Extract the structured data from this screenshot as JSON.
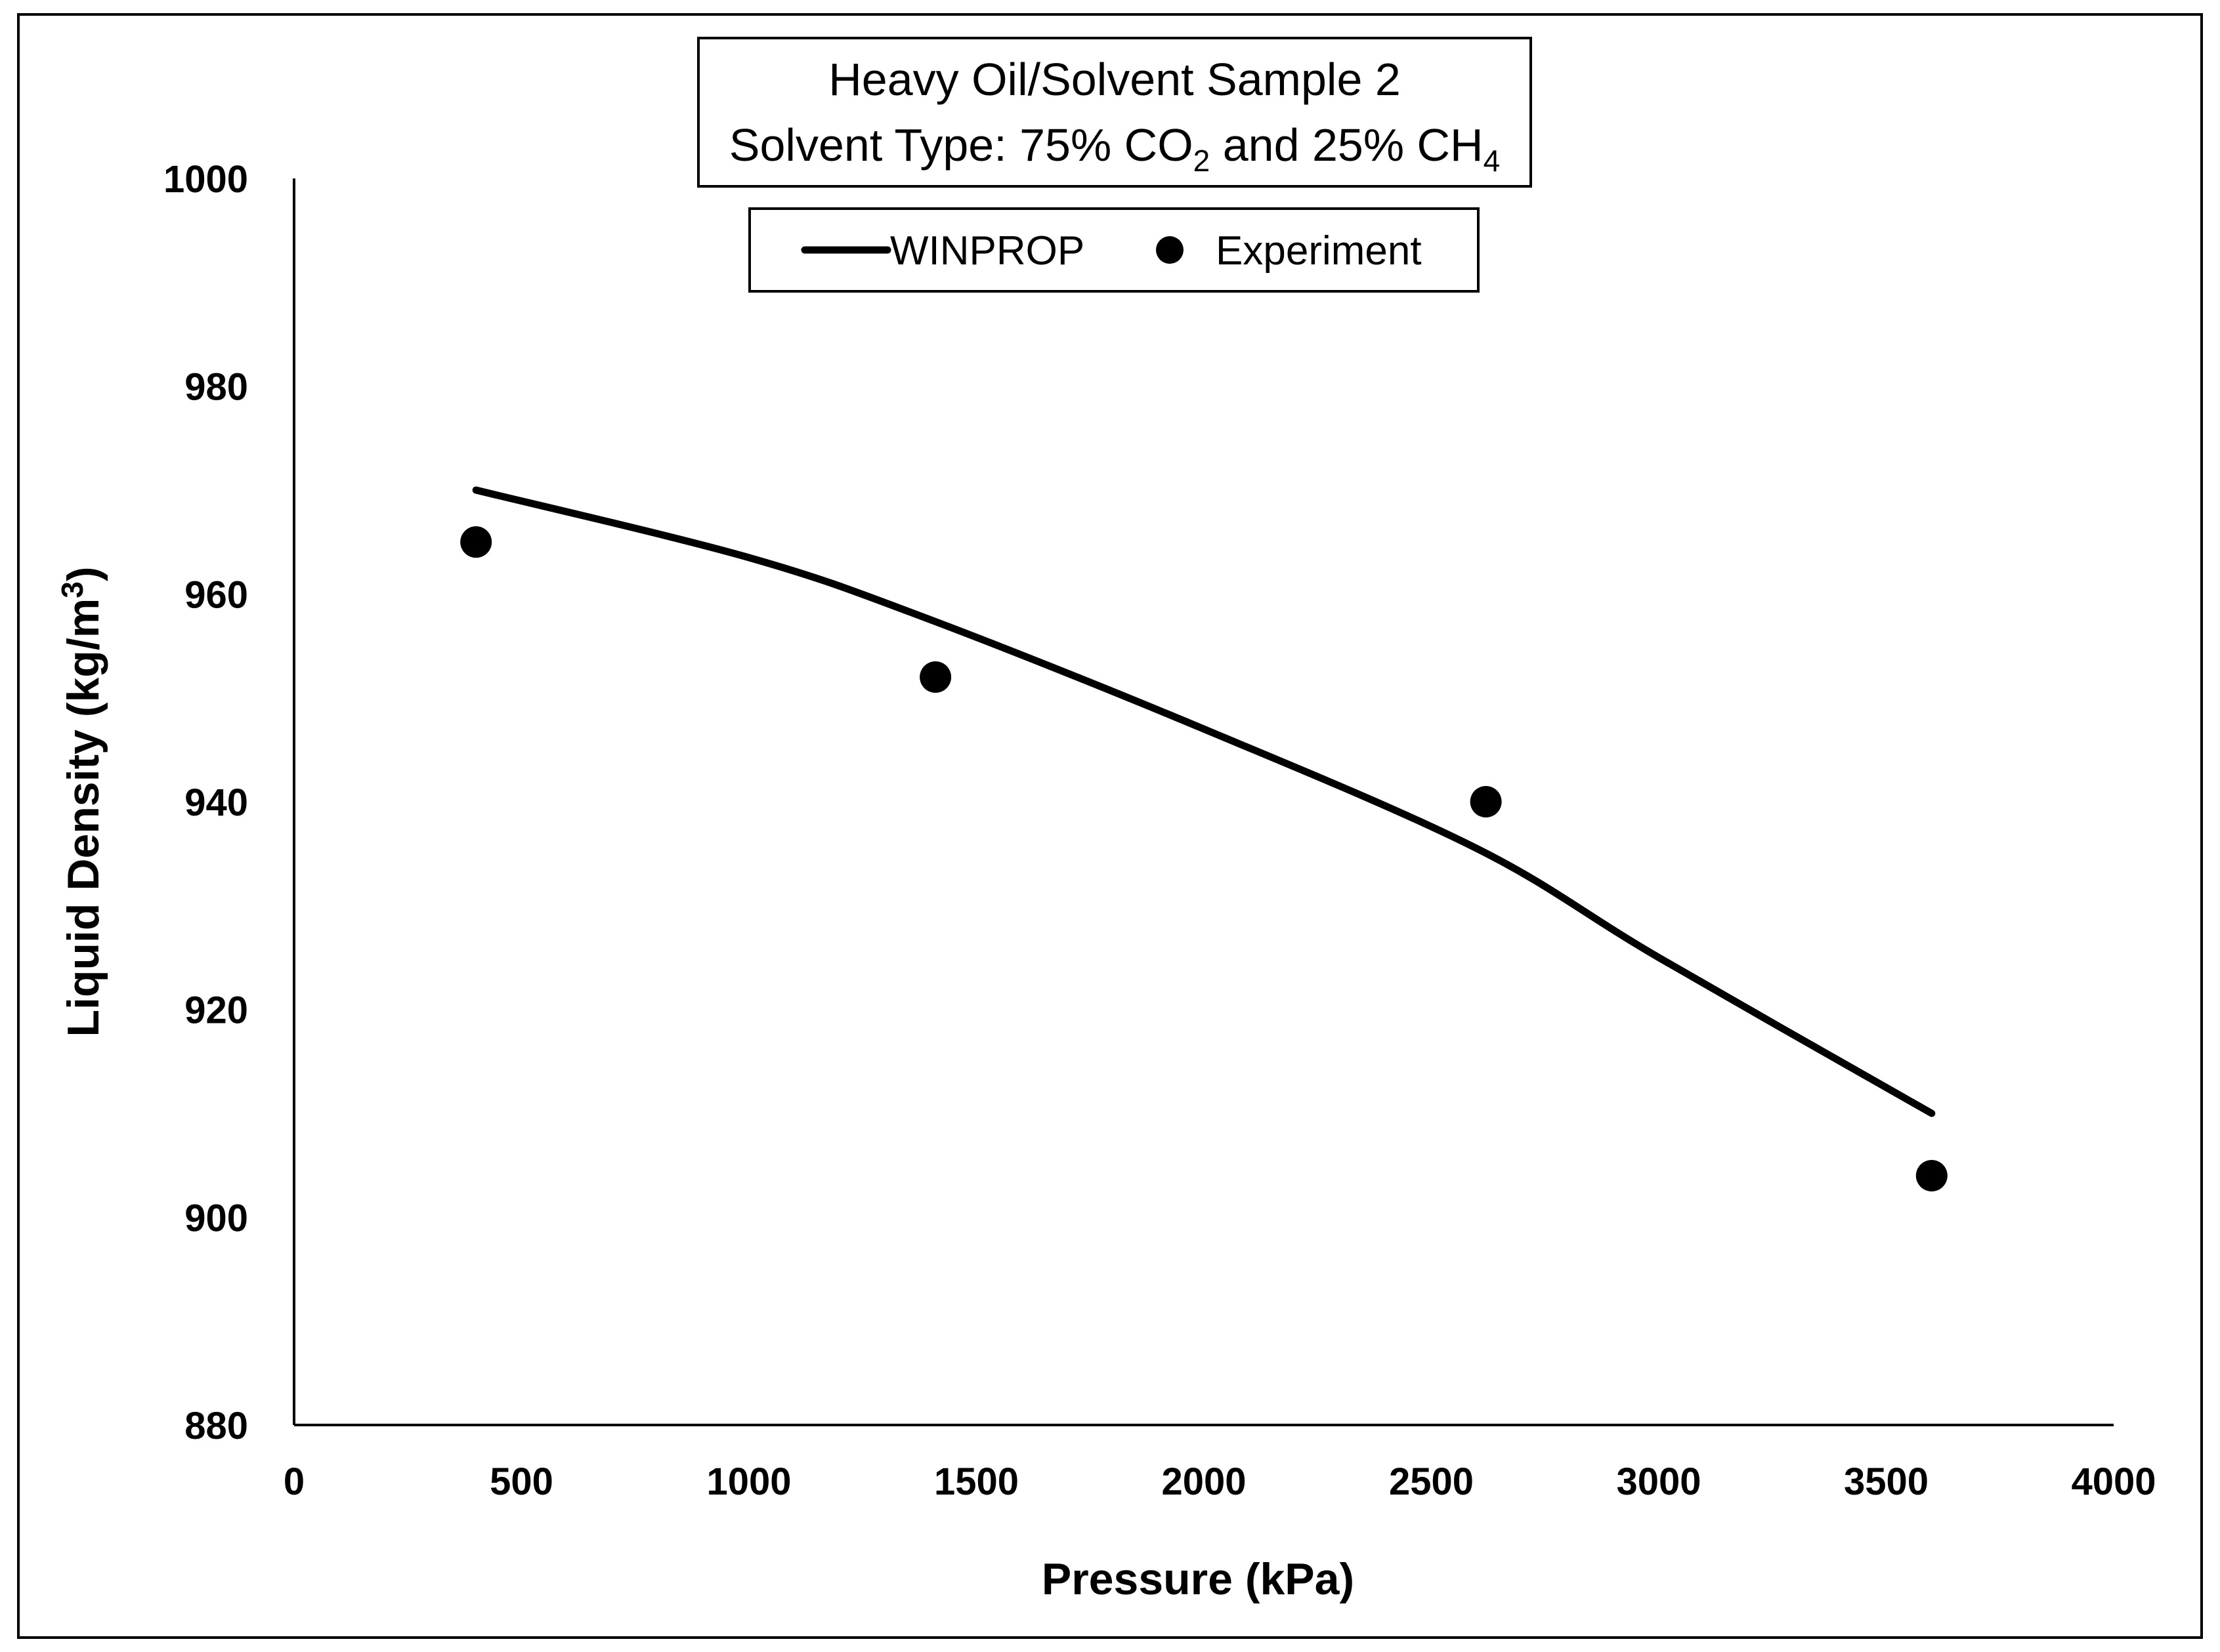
{
  "chart_data": {
    "type": "line",
    "title": {
      "line1": "Heavy Oil/Solvent Sample 2",
      "line2_prefix": "Solvent Type: 75% CO",
      "line2_sub1": "2",
      "line2_mid": " and 25% CH",
      "line2_sub2": "4"
    },
    "xlabel": "Pressure (kPa)",
    "ylabel": {
      "main": "Liquid Density (kg/m",
      "sup": "3",
      "end": ")"
    },
    "xlim": [
      0,
      4000
    ],
    "ylim": [
      880,
      1000
    ],
    "xticks": [
      0,
      500,
      1000,
      1500,
      2000,
      2500,
      3000,
      3500,
      4000
    ],
    "yticks": [
      880,
      900,
      920,
      940,
      960,
      980,
      1000
    ],
    "grid": false,
    "legend_position": "top-center",
    "series": [
      {
        "name": "WINPROP",
        "kind": "line",
        "color": "#000000",
        "x": [
          400,
          1000,
          1400,
          2000,
          2600,
          3000,
          3600
        ],
        "y": [
          970,
          963.5,
          957.5,
          947,
          935.5,
          925,
          910
        ]
      },
      {
        "name": "Experiment",
        "kind": "scatter",
        "color": "#000000",
        "x": [
          400,
          1410,
          2620,
          3600
        ],
        "y": [
          965,
          952,
          940,
          904
        ]
      }
    ]
  }
}
